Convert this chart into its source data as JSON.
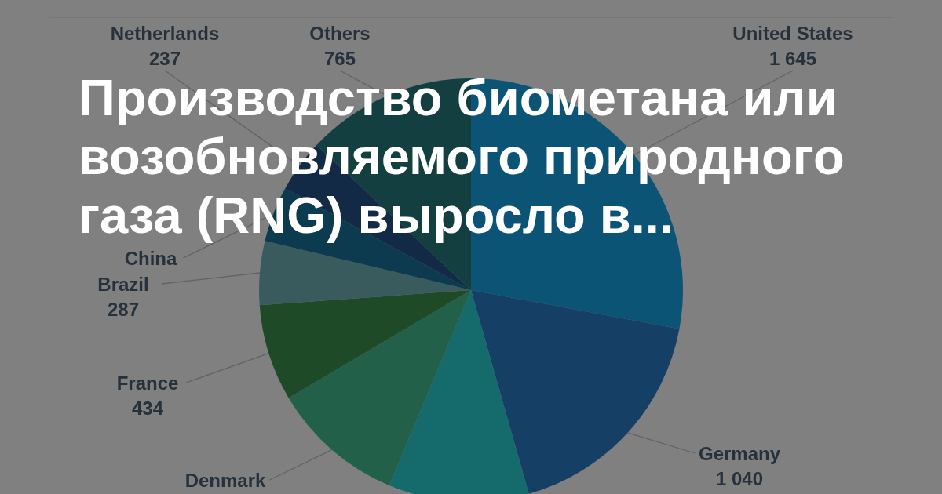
{
  "chart_data": {
    "type": "pie",
    "title": "Производство биометана или возобновляемого природного газа (RNG) выросло в...",
    "categories": [
      "United States",
      "Germany",
      null,
      "Denmark",
      "France",
      "Brazil",
      "China",
      "Netherlands",
      "Others"
    ],
    "values": [
      1645,
      1040,
      630,
      600,
      434,
      287,
      250,
      237,
      765
    ],
    "value_labels": [
      "1 645",
      "1 040",
      null,
      null,
      "434",
      "287",
      null,
      "237",
      "765"
    ],
    "colors": [
      "#0b5475",
      "#163f66",
      "#156b6c",
      "#22604a",
      "#1f4a27",
      "#3a5b5d",
      "#0c3b50",
      "#132a46",
      "#143f41"
    ]
  }
}
